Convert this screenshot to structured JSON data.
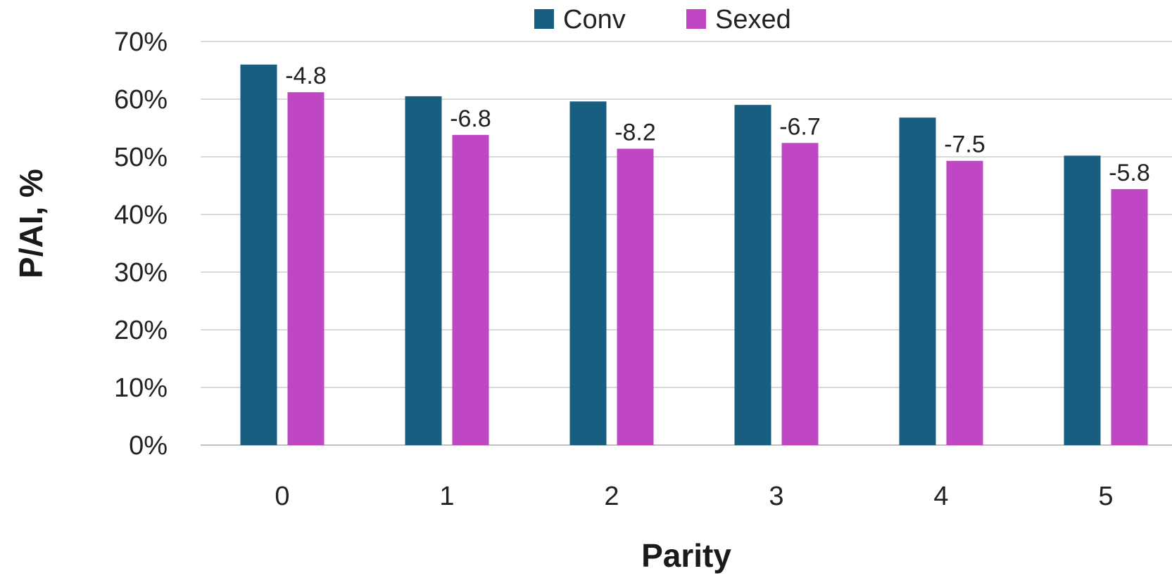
{
  "chart_data": {
    "type": "bar",
    "categories": [
      "0",
      "1",
      "2",
      "3",
      "4",
      "5"
    ],
    "series": [
      {
        "name": "Conv",
        "color": "#185E80",
        "values": [
          66.0,
          60.5,
          59.6,
          59.0,
          56.8,
          50.2
        ]
      },
      {
        "name": "Sexed",
        "color": "#C047C4",
        "values": [
          61.2,
          53.8,
          51.4,
          52.4,
          49.3,
          44.4
        ]
      }
    ],
    "data_labels": [
      "-4.8",
      "-6.8",
      "-8.2",
      "-6.7",
      "-7.5",
      "-5.8"
    ],
    "xlabel": "Parity",
    "ylabel": "P/AI, %",
    "ylim": [
      0,
      70
    ],
    "y_ticks": [
      "0%",
      "10%",
      "20%",
      "30%",
      "40%",
      "50%",
      "60%",
      "70%"
    ],
    "grid": true,
    "legend_position": "top"
  }
}
